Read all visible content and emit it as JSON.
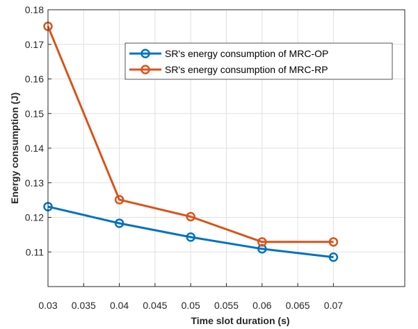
{
  "chart_data": {
    "type": "line",
    "xlabel": "Time slot duration (s)",
    "ylabel": "Energy consumption (J)",
    "xlim": [
      0.03,
      0.08
    ],
    "ylim": [
      0.1,
      0.18
    ],
    "xticks": [
      "0.03",
      "0.035",
      "0.04",
      "0.045",
      "0.05",
      "0.055",
      "0.06",
      "0.065",
      "0.07"
    ],
    "yticks": [
      "0.11",
      "0.12",
      "0.13",
      "0.14",
      "0.15",
      "0.16",
      "0.17",
      "0.18"
    ],
    "grid": true,
    "legend_position": "top-right",
    "x": [
      0.03,
      0.04,
      0.05,
      0.06,
      0.07
    ],
    "series": [
      {
        "name": "SR's energy consumption of MRC-OP",
        "color": "#0072BD",
        "values": [
          0.1231,
          0.1183,
          0.1143,
          0.1109,
          0.1085
        ]
      },
      {
        "name": "SR's energy consumption of MRC-RP",
        "color": "#D95319",
        "values": [
          0.1752,
          0.1251,
          0.1202,
          0.1129,
          0.1129
        ]
      }
    ]
  }
}
